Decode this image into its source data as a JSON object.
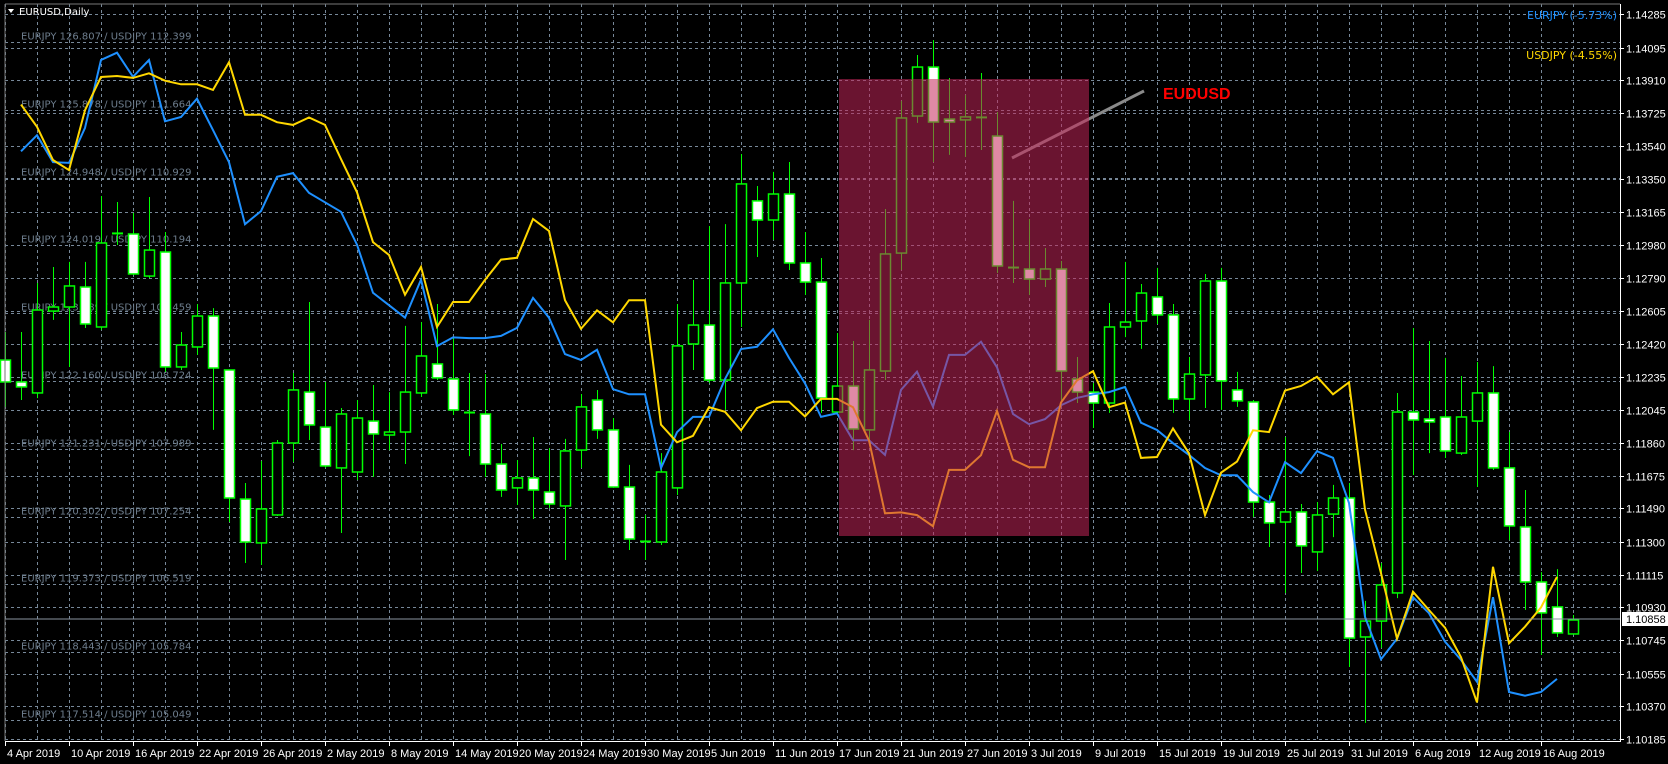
{
  "window": {
    "title": "EURUSD,Daily",
    "menu_icon": "triangle-down-icon"
  },
  "legend": [
    {
      "label": "EURJPY (-5.73%)",
      "color": "#1e90ff"
    },
    {
      "label": "USDJPY (-4.55%)",
      "color": "#ffd700"
    }
  ],
  "annotation": {
    "label": "EUDUSD",
    "color": "#ff0000",
    "highlight_color": "#c42559"
  },
  "current_price": "1.10858",
  "colors": {
    "background": "#000000",
    "grid": "#778899",
    "candle_outline": "#00ff00",
    "bull_body": "#000000",
    "bear_body": "#ffffff",
    "eurjpy": "#1e90ff",
    "usdjpy": "#ffd700"
  },
  "chart_data": {
    "type": "candlestick",
    "symbol": "EURUSD",
    "timeframe": "Daily",
    "ylim": [
      1.10185,
      1.14285
    ],
    "grid": true,
    "legend_placement": "top-right",
    "y_tick_labels": [
      "1.14285",
      "1.14095",
      "1.13910",
      "1.13725",
      "1.13540",
      "1.13350",
      "1.13165",
      "1.12980",
      "1.12790",
      "1.12605",
      "1.12420",
      "1.12235",
      "1.12045",
      "1.11860",
      "1.11675",
      "1.11490",
      "1.11300",
      "1.11115",
      "1.10930",
      "1.10745",
      "1.10555",
      "1.10370",
      "1.10185"
    ],
    "x_tick_labels": [
      "4 Apr 2019",
      "10 Apr 2019",
      "16 Apr 2019",
      "22 Apr 2019",
      "26 Apr 2019",
      "2 May 2019",
      "8 May 2019",
      "14 May 2019",
      "20 May 2019",
      "24 May 2019",
      "30 May 2019",
      "5 Jun 2019",
      "11 Jun 2019",
      "17 Jun 2019",
      "21 Jun 2019",
      "27 Jun 2019",
      "3 Jul 2019",
      "9 Jul 2019",
      "15 Jul 2019",
      "19 Jul 2019",
      "25 Jul 2019",
      "31 Jul 2019",
      "6 Aug 2019",
      "12 Aug 2019",
      "16 Aug 2019"
    ],
    "ohlc_fields": [
      "open",
      "high",
      "low",
      "close"
    ],
    "candles": [
      [
        1.12328,
        1.12487,
        1.12063,
        1.12204
      ],
      [
        1.12204,
        1.12487,
        1.12102,
        1.12176
      ],
      [
        1.12142,
        1.12764,
        1.12113,
        1.12611
      ],
      [
        1.12605,
        1.12854,
        1.12555,
        1.12628
      ],
      [
        1.12628,
        1.12883,
        1.12289,
        1.12747
      ],
      [
        1.12741,
        1.12883,
        1.12509,
        1.12532
      ],
      [
        1.12515,
        1.13256,
        1.12498,
        1.1299
      ],
      [
        1.13047,
        1.13222,
        1.12979,
        1.13047
      ],
      [
        1.13041,
        1.1316,
        1.12809,
        1.12815
      ],
      [
        1.12803,
        1.1325,
        1.12792,
        1.1295
      ],
      [
        1.12939,
        1.13052,
        1.12261,
        1.12289
      ],
      [
        1.12289,
        1.12487,
        1.12272,
        1.12413
      ],
      [
        1.12402,
        1.12645,
        1.12357,
        1.12577
      ],
      [
        1.12577,
        1.12622,
        1.11933,
        1.12283
      ],
      [
        1.12272,
        1.12272,
        1.11412,
        1.11548
      ],
      [
        1.11542,
        1.11633,
        1.1118,
        1.11299
      ],
      [
        1.11294,
        1.11757,
        1.11169,
        1.11486
      ],
      [
        1.11452,
        1.11876,
        1.11446,
        1.11859
      ],
      [
        1.11859,
        1.12255,
        1.11752,
        1.12159
      ],
      [
        1.12147,
        1.12656,
        1.11876,
        1.11961
      ],
      [
        1.11949,
        1.12204,
        1.11718,
        1.11729
      ],
      [
        1.11718,
        1.12057,
        1.1135,
        1.12023
      ],
      [
        1.11695,
        1.12102,
        1.1165,
        1.12
      ],
      [
        1.11983,
        1.12187,
        1.11667,
        1.1191
      ],
      [
        1.11904,
        1.12147,
        1.11819,
        1.11921
      ],
      [
        1.11921,
        1.12521,
        1.1174,
        1.12147
      ],
      [
        1.12142,
        1.12543,
        1.12119,
        1.12351
      ],
      [
        1.12306,
        1.12645,
        1.12215,
        1.12227
      ],
      [
        1.12221,
        1.12453,
        1.12017,
        1.12046
      ],
      [
        1.12034,
        1.12255,
        1.11785,
        1.12023
      ],
      [
        1.12023,
        1.12249,
        1.11667,
        1.1174
      ],
      [
        1.1174,
        1.11853,
        1.11554,
        1.11593
      ],
      [
        1.11605,
        1.11763,
        1.11508,
        1.11661
      ],
      [
        1.11661,
        1.11893,
        1.11429,
        1.11593
      ],
      [
        1.11582,
        1.11831,
        1.11491,
        1.11514
      ],
      [
        1.11503,
        1.11882,
        1.11197,
        1.11814
      ],
      [
        1.11819,
        1.12136,
        1.11718,
        1.12063
      ],
      [
        1.12102,
        1.12159,
        1.11882,
        1.11933
      ],
      [
        1.11933,
        1.12,
        1.11605,
        1.1161
      ],
      [
        1.1161,
        1.11735,
        1.11254,
        1.11316
      ],
      [
        1.11305,
        1.11452,
        1.11197,
        1.11299
      ],
      [
        1.11299,
        1.11802,
        1.11282,
        1.11695
      ],
      [
        1.11605,
        1.12645,
        1.11565,
        1.12408
      ],
      [
        1.12419,
        1.12781,
        1.12272,
        1.12526
      ],
      [
        1.12526,
        1.13086,
        1.12198,
        1.12215
      ],
      [
        1.12215,
        1.13097,
        1.12046,
        1.12764
      ],
      [
        1.12764,
        1.13493,
        1.12515,
        1.13324
      ],
      [
        1.13228,
        1.13312,
        1.12911,
        1.1312
      ],
      [
        1.1312,
        1.13392,
        1.13007,
        1.13267
      ],
      [
        1.13267,
        1.13448,
        1.12837,
        1.12877
      ],
      [
        1.12877,
        1.13052,
        1.12696,
        1.12769
      ],
      [
        1.12769,
        1.12905,
        1.12029,
        1.12113
      ],
      [
        1.12034,
        1.12481,
        1.12029,
        1.12181
      ],
      [
        1.12181,
        1.12436,
        1.11819,
        1.11938
      ],
      [
        1.11933,
        1.12555,
        1.11876,
        1.12272
      ],
      [
        1.12266,
        1.13182,
        1.12215,
        1.12928
      ],
      [
        1.12933,
        1.13793,
        1.12837,
        1.13697
      ],
      [
        1.13708,
        1.14053,
        1.13669,
        1.13985
      ],
      [
        1.13985,
        1.14138,
        1.13448,
        1.13674
      ],
      [
        1.13691,
        1.13923,
        1.13488,
        1.13674
      ],
      [
        1.13686,
        1.13827,
        1.13476,
        1.13703
      ],
      [
        1.13703,
        1.13951,
        1.13516,
        1.13703
      ],
      [
        1.13595,
        1.13731,
        1.1282,
        1.1286
      ],
      [
        1.12854,
        1.13228,
        1.12764,
        1.12854
      ],
      [
        1.12843,
        1.13126,
        1.12696,
        1.12786
      ],
      [
        1.12786,
        1.12962,
        1.12741,
        1.12843
      ],
      [
        1.12843,
        1.12888,
        1.12085,
        1.12266
      ],
      [
        1.12221,
        1.12345,
        1.12085,
        1.12147
      ],
      [
        1.12147,
        1.12198,
        1.11944,
        1.12085
      ],
      [
        1.12085,
        1.12651,
        1.12029,
        1.12515
      ],
      [
        1.12515,
        1.12883,
        1.12458,
        1.12543
      ],
      [
        1.12549,
        1.12758,
        1.12391,
        1.12707
      ],
      [
        1.12685,
        1.12849,
        1.12532,
        1.12583
      ],
      [
        1.12583,
        1.12645,
        1.12029,
        1.12108
      ],
      [
        1.12108,
        1.12345,
        1.11989,
        1.12249
      ],
      [
        1.12244,
        1.12815,
        1.12057,
        1.12775
      ],
      [
        1.12775,
        1.12849,
        1.12046,
        1.1221
      ],
      [
        1.12159,
        1.12261,
        1.12063,
        1.12097
      ],
      [
        1.12091,
        1.12102,
        1.11441,
        1.11525
      ],
      [
        1.11525,
        1.11565,
        1.11271,
        1.11407
      ],
      [
        1.11412,
        1.11893,
        1.11011,
        1.11469
      ],
      [
        1.11469,
        1.11514,
        1.11124,
        1.11277
      ],
      [
        1.11243,
        1.11525,
        1.11135,
        1.11452
      ],
      [
        1.11457,
        1.11622,
        1.11327,
        1.11548
      ],
      [
        1.11548,
        1.11633,
        1.10592,
        1.10756
      ],
      [
        1.10762,
        1.10966,
        1.10276,
        1.10852
      ],
      [
        1.10852,
        1.1118,
        1.107,
        1.11056
      ],
      [
        1.11011,
        1.12142,
        1.10982,
        1.12034
      ],
      [
        1.12034,
        1.12509,
        1.11678,
        1.11989
      ],
      [
        1.11995,
        1.12436,
        1.11802,
        1.11978
      ],
      [
        1.12006,
        1.1234,
        1.11774,
        1.11814
      ],
      [
        1.11802,
        1.12238,
        1.11791,
        1.12006
      ],
      [
        1.11983,
        1.12317,
        1.1161,
        1.12142
      ],
      [
        1.12142,
        1.12294,
        1.11706,
        1.11718
      ],
      [
        1.11718,
        1.11921,
        1.1131,
        1.1139
      ],
      [
        1.11384,
        1.11593,
        1.10915,
        1.11073
      ],
      [
        1.11073,
        1.11129,
        1.1066,
        1.10898
      ],
      [
        1.10932,
        1.11146,
        1.10762,
        1.10785
      ],
      [
        1.10779,
        1.10886,
        1.10779,
        1.10858
      ]
    ],
    "overlay_scale_labels": [
      "EURJPY 126.807 / USDJPY 112.399",
      "EURJPY 125.878 / USDJPY 111.664",
      "EURJPY 124.948 / USDJPY 110.929",
      "EURJPY 124.019 / USDJPY 110.194",
      "EURJPY 123.089 / USDJPY 109.459",
      "EURJPY 122.160 / USDJPY 108.724",
      "EURJPY 121.231 / USDJPY 107.989",
      "EURJPY 120.302 / USDJPY 107.254",
      "EURJPY 119.373 / USDJPY 106.519",
      "EURJPY 118.443 / USDJPY 105.784",
      "EURJPY 117.514 / USDJPY 105.049"
    ],
    "overlay_series": [
      {
        "name": "EURJPY",
        "color": "#1e90ff",
        "start_bar": 1,
        "values": [
          125.31,
          125.53,
          125.16,
          125.15,
          125.63,
          126.56,
          126.66,
          126.33,
          126.56,
          125.72,
          125.78,
          126.03,
          125.6,
          125.16,
          124.31,
          124.49,
          124.96,
          125.01,
          124.74,
          124.61,
          124.48,
          124.03,
          123.37,
          123.2,
          123.03,
          123.55,
          122.64,
          122.76,
          122.75,
          122.75,
          122.78,
          122.89,
          123.3,
          123.03,
          122.53,
          122.45,
          122.59,
          122.05,
          121.98,
          121.98,
          120.97,
          121.46,
          121.67,
          121.67,
          122.19,
          122.6,
          122.63,
          122.87,
          122.48,
          122.13,
          121.67,
          121.72,
          121.35,
          121.35,
          121.15,
          122.04,
          122.29,
          121.81,
          122.52,
          122.52,
          122.7,
          122.35,
          121.71,
          121.57,
          121.64,
          121.83,
          121.93,
          121.98,
          122.01,
          122.08,
          121.59,
          121.49,
          121.31,
          121.15,
          120.97,
          120.87,
          120.87,
          120.64,
          120.5,
          121.05,
          120.9,
          121.2,
          121.11,
          120.49,
          118.93,
          118.35,
          118.63,
          119.2,
          118.98,
          118.59,
          118.34,
          118.04,
          119.2,
          117.9,
          117.85,
          117.9,
          118.08
        ]
      },
      {
        "name": "USDJPY",
        "color": "#ffd700",
        "start_bar": 1,
        "values": [
          111.72,
          111.48,
          111.12,
          111.01,
          111.66,
          112.02,
          112.03,
          112.01,
          112.06,
          111.98,
          111.94,
          111.94,
          111.88,
          112.18,
          111.61,
          111.61,
          111.53,
          111.5,
          111.58,
          111.5,
          111.13,
          110.77,
          110.23,
          110.09,
          109.66,
          109.96,
          109.31,
          109.58,
          109.58,
          109.82,
          110.04,
          110.06,
          110.48,
          110.35,
          109.6,
          109.29,
          109.49,
          109.36,
          109.6,
          109.6,
          108.25,
          108.06,
          108.13,
          108.44,
          108.39,
          108.19,
          108.43,
          108.5,
          108.5,
          108.34,
          108.53,
          108.53,
          108.44,
          108.08,
          107.29,
          107.3,
          107.27,
          107.15,
          107.76,
          107.76,
          107.92,
          108.4,
          107.87,
          107.79,
          107.79,
          108.49,
          108.73,
          108.83,
          108.44,
          108.49,
          107.89,
          107.9,
          108.21,
          107.94,
          107.27,
          107.73,
          107.85,
          108.19,
          108.17,
          108.62,
          108.67,
          108.77,
          108.58,
          108.71,
          107.33,
          106.64,
          105.93,
          106.44,
          106.24,
          106.05,
          105.73,
          105.24,
          106.71,
          105.88,
          106.06,
          106.27,
          106.6
        ]
      }
    ]
  }
}
